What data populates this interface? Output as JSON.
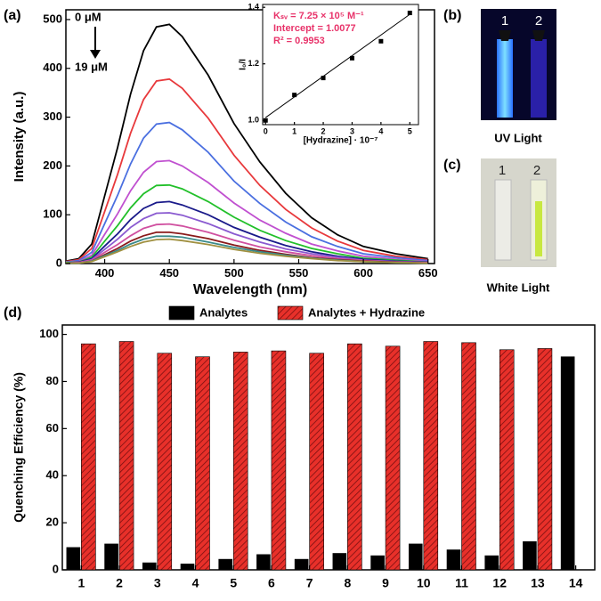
{
  "chart_data": [
    {
      "type": "line",
      "panel_label": "(a)",
      "x_label": "Wavelength (nm)",
      "y_label": "Intensity (a.u.)",
      "annotations": [
        "0 μM",
        "19 μM"
      ],
      "x": [
        370,
        380,
        390,
        400,
        410,
        420,
        430,
        440,
        450,
        460,
        480,
        500,
        520,
        540,
        560,
        580,
        600,
        625,
        650
      ],
      "series": [
        {
          "color": "#000000",
          "values": [
            5,
            10,
            40,
            139,
            238,
            347,
            436,
            485,
            490,
            465,
            386,
            287,
            208,
            144,
            94,
            59,
            35,
            20,
            10
          ]
        },
        {
          "color": "#e8393c",
          "values": [
            4,
            8,
            31,
            107,
            183,
            267,
            336,
            374,
            378,
            359,
            298,
            222,
            160,
            111,
            73,
            46,
            27,
            15,
            8
          ]
        },
        {
          "color": "#4a6fe0",
          "values": [
            3,
            6,
            23,
            82,
            140,
            204,
            257,
            286,
            289,
            274,
            228,
            169,
            123,
            85,
            55,
            35,
            20,
            12,
            6
          ]
        },
        {
          "color": "#c050d0",
          "values": [
            2,
            4,
            17,
            60,
            102,
            149,
            187,
            209,
            211,
            200,
            166,
            124,
            89,
            62,
            40,
            26,
            15,
            9,
            4
          ]
        },
        {
          "color": "#22c02a",
          "values": [
            2,
            3,
            13,
            46,
            78,
            114,
            143,
            160,
            161,
            153,
            127,
            95,
            68,
            47,
            31,
            20,
            11,
            7,
            3
          ]
        },
        {
          "color": "#1a1a8a",
          "values": [
            1,
            3,
            10,
            36,
            61,
            90,
            113,
            125,
            127,
            120,
            100,
            74,
            54,
            37,
            24,
            15,
            9,
            5,
            3
          ]
        },
        {
          "color": "#8a5ad0",
          "values": [
            1,
            2,
            8,
            29,
            50,
            74,
            92,
            103,
            104,
            99,
            82,
            61,
            44,
            30,
            20,
            13,
            7,
            4,
            2
          ]
        },
        {
          "color": "#d050a0",
          "values": [
            1,
            2,
            7,
            23,
            39,
            57,
            72,
            80,
            81,
            77,
            64,
            48,
            34,
            24,
            16,
            10,
            6,
            3,
            2
          ]
        },
        {
          "color": "#8a1a1a",
          "values": [
            1,
            1,
            5,
            18,
            31,
            46,
            57,
            64,
            64,
            61,
            51,
            38,
            27,
            19,
            12,
            8,
            5,
            3,
            1
          ]
        },
        {
          "color": "#3a8a8a",
          "values": [
            1,
            1,
            5,
            16,
            27,
            40,
            50,
            56,
            56,
            54,
            44,
            33,
            24,
            17,
            11,
            7,
            4,
            2,
            1
          ]
        },
        {
          "color": "#a09040",
          "values": [
            1,
            1,
            4,
            14,
            24,
            35,
            44,
            49,
            50,
            47,
            39,
            29,
            21,
            15,
            10,
            6,
            4,
            2,
            1
          ]
        }
      ],
      "xlim": [
        370,
        655
      ],
      "xticks": [
        400,
        450,
        500,
        550,
        600,
        650
      ],
      "ylim": [
        0,
        520
      ],
      "yticks": [
        0,
        100,
        200,
        300,
        400,
        500
      ]
    },
    {
      "type": "scatter",
      "x_label": "[Hydrazine] · 10⁻⁷",
      "y_label": "I₀/I",
      "annotations": [
        "Kₛᵥ = 7.25 × 10⁵ M⁻¹",
        "Intercept = 1.0077",
        "R² = 0.9953"
      ],
      "x": [
        0,
        1,
        2,
        3,
        4,
        5
      ],
      "series": [
        {
          "color": "#000000",
          "values": [
            1.0,
            1.09,
            1.15,
            1.22,
            1.28,
            1.38
          ]
        }
      ],
      "fit": {
        "x": [
          0,
          5
        ],
        "values": [
          1.01,
          1.375
        ]
      },
      "xlim": [
        -0.1,
        5.3
      ],
      "xticks": [
        0,
        1,
        2,
        3,
        4,
        5
      ],
      "ylim": [
        0.985,
        1.41
      ],
      "yticks": [
        {
          "value": 1.0,
          "label": "1.0"
        },
        {
          "value": 1.2,
          "label": "1.2"
        },
        {
          "value": 1.4,
          "label": "1.4"
        }
      ]
    },
    {
      "type": "bar",
      "panel_label": "(d)",
      "y_label": "Quenching Efficiency (%)",
      "categories": [
        "1",
        "2",
        "3",
        "4",
        "5",
        "6",
        "7",
        "8",
        "9",
        "10",
        "11",
        "12",
        "13",
        "14"
      ],
      "series": [
        {
          "name": "Analytes",
          "color": "#000000",
          "values": [
            9.5,
            11,
            3,
            2.5,
            4.5,
            6.5,
            4.5,
            7,
            6,
            11,
            8.5,
            6,
            12,
            90.5
          ]
        },
        {
          "name": "Analytes + Hydrazine",
          "color": "#e8302a",
          "values": [
            96,
            97,
            92,
            90.5,
            92.5,
            93,
            92,
            96,
            95,
            97,
            96.5,
            93.5,
            94,
            null
          ]
        }
      ],
      "ylim": [
        0,
        104
      ],
      "yticks": [
        0,
        20,
        40,
        60,
        80,
        100
      ]
    }
  ],
  "photos": [
    {
      "panel_label": "(b)",
      "caption": "UV Light",
      "vials": [
        "1",
        "2"
      ]
    },
    {
      "panel_label": "(c)",
      "caption": "White Light",
      "vials": [
        "1",
        "2"
      ]
    }
  ]
}
